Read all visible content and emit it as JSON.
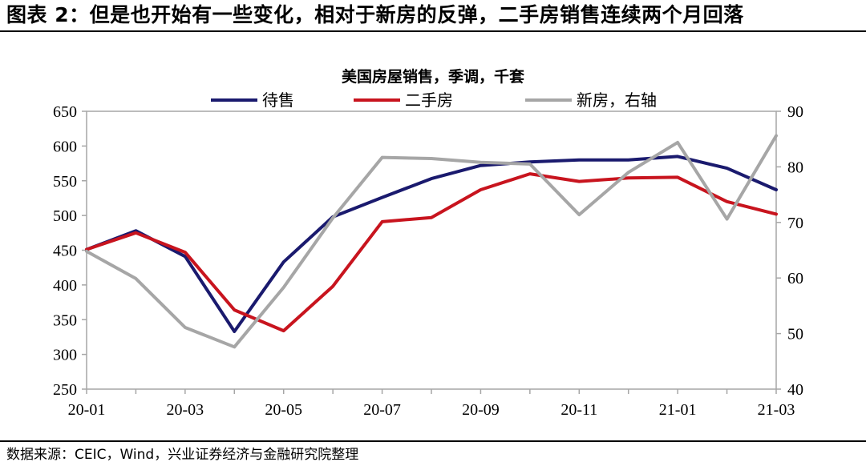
{
  "figure_header": "图表 2：但是也开始有一些变化，相对于新房的反弹，二手房销售连续两个月回落",
  "source_note": "数据来源：CEIC，Wind，兴业证券经济与金融研究院整理",
  "colors": {
    "pending": "#1a1a6e",
    "existing": "#c8141e",
    "new_homes": "#a6a6a6"
  },
  "chart_data": {
    "type": "line",
    "title": "美国房屋销售，季调，千套",
    "x": [
      "20-01",
      "20-02",
      "20-03",
      "20-04",
      "20-05",
      "20-06",
      "20-07",
      "20-08",
      "20-09",
      "20-10",
      "20-11",
      "20-12",
      "21-01",
      "21-02",
      "21-03"
    ],
    "x_tick_labels": [
      "20-01",
      "20-03",
      "20-05",
      "20-07",
      "20-09",
      "20-11",
      "21-01",
      "21-03"
    ],
    "y_left_range": [
      250,
      650
    ],
    "y_left_ticks": [
      "250",
      "300",
      "350",
      "400",
      "450",
      "500",
      "550",
      "600",
      "650"
    ],
    "y_right_range": [
      40,
      90
    ],
    "y_right_ticks": [
      "40",
      "50",
      "60",
      "70",
      "80",
      "90"
    ],
    "grid": false,
    "legend_position": "top",
    "series": [
      {
        "name": "待售",
        "axis": "left",
        "color": "#1a1a6e",
        "values": [
          451,
          478,
          441,
          333,
          433,
          498,
          526,
          553,
          572,
          577,
          580,
          580,
          585,
          568,
          537
        ]
      },
      {
        "name": "二手房",
        "axis": "left",
        "color": "#c8141e",
        "values": [
          451,
          475,
          447,
          364,
          334,
          398,
          491,
          497,
          537,
          560,
          549,
          554,
          555,
          520,
          502
        ]
      },
      {
        "name": "新房，右轴",
        "axis": "right",
        "color": "#a6a6a6",
        "values": [
          64.8,
          59.9,
          51.1,
          47.6,
          58.3,
          70.8,
          81.7,
          81.5,
          80.8,
          80.5,
          71.4,
          79.0,
          84.4,
          70.6,
          85.6
        ]
      }
    ]
  }
}
